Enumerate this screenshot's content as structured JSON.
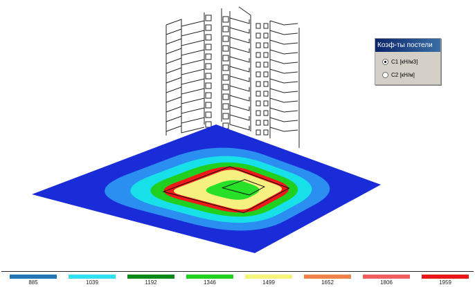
{
  "panel": {
    "title": "Коэф-ты постели",
    "options": [
      {
        "label": "C1  [кН/м3]",
        "selected": true
      },
      {
        "label": "C2  [кН/м]",
        "selected": false
      }
    ]
  },
  "legend": {
    "items": [
      {
        "value": "885",
        "color": "#1f78b4"
      },
      {
        "value": "1039",
        "color": "#33e0f0"
      },
      {
        "value": "1192",
        "color": "#0a8a1a"
      },
      {
        "value": "1346",
        "color": "#1ed21e"
      },
      {
        "value": "1499",
        "color": "#f5f57a"
      },
      {
        "value": "1652",
        "color": "#f0824a"
      },
      {
        "value": "1806",
        "color": "#f06060"
      },
      {
        "value": "1959",
        "color": "#e81818"
      }
    ]
  },
  "model": {
    "colors": {
      "outer": "#1a2bd8",
      "mid_blue": "#2a8ff0",
      "cyan": "#18e0e8",
      "green": "#20d020",
      "red": "#f01818",
      "yellow": "#f6f080",
      "core": "#28e028",
      "building_stroke": "#222222"
    }
  }
}
